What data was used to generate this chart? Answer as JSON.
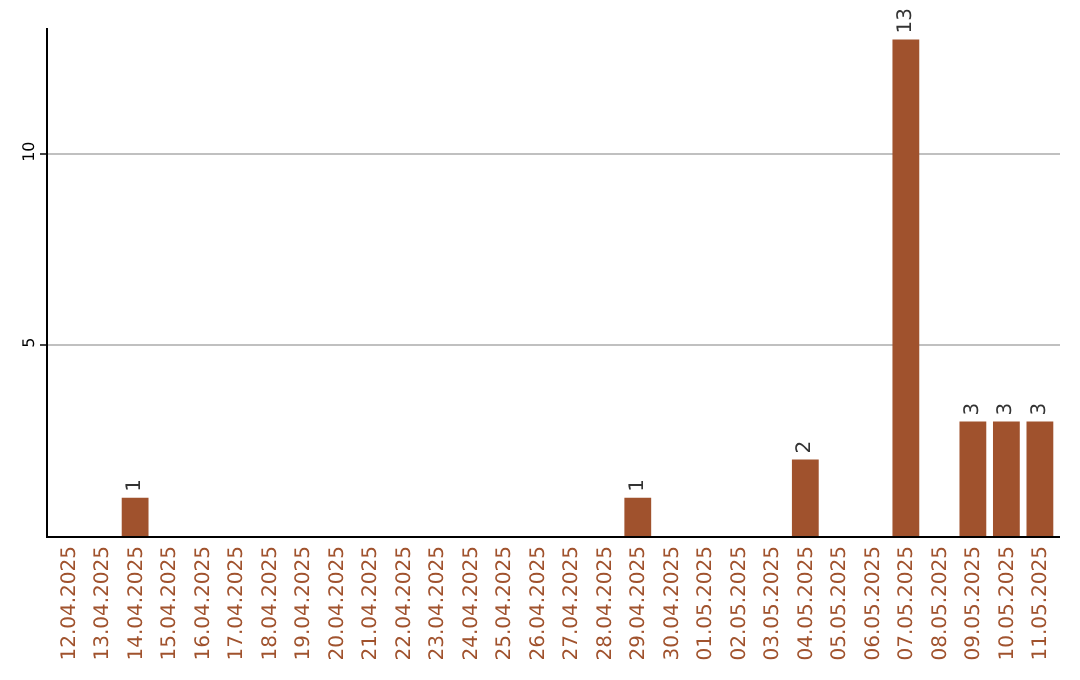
{
  "chart_data": {
    "type": "bar",
    "categories": [
      "12.04.2025",
      "13.04.2025",
      "14.04.2025",
      "15.04.2025",
      "16.04.2025",
      "17.04.2025",
      "18.04.2025",
      "19.04.2025",
      "20.04.2025",
      "21.04.2025",
      "22.04.2025",
      "23.04.2025",
      "24.04.2025",
      "25.04.2025",
      "26.04.2025",
      "27.04.2025",
      "28.04.2025",
      "29.04.2025",
      "30.04.2025",
      "01.05.2025",
      "02.05.2025",
      "03.05.2025",
      "04.05.2025",
      "05.05.2025",
      "06.05.2025",
      "07.05.2025",
      "08.05.2025",
      "09.05.2025",
      "10.05.2025",
      "11.05.2025"
    ],
    "values": [
      0,
      0,
      1,
      0,
      0,
      0,
      0,
      0,
      0,
      0,
      0,
      0,
      0,
      0,
      0,
      0,
      0,
      1,
      0,
      0,
      0,
      0,
      2,
      0,
      0,
      13,
      0,
      3,
      3,
      3
    ],
    "value_labels": [
      null,
      null,
      "1",
      null,
      null,
      null,
      null,
      null,
      null,
      null,
      null,
      null,
      null,
      null,
      null,
      null,
      null,
      "1",
      null,
      null,
      null,
      null,
      "2",
      null,
      null,
      "13",
      null,
      "3",
      "3",
      "3"
    ],
    "color": "#a0522d",
    "ylim": [
      0,
      13.3
    ],
    "yticks": [
      5,
      10
    ],
    "grid": "y"
  }
}
